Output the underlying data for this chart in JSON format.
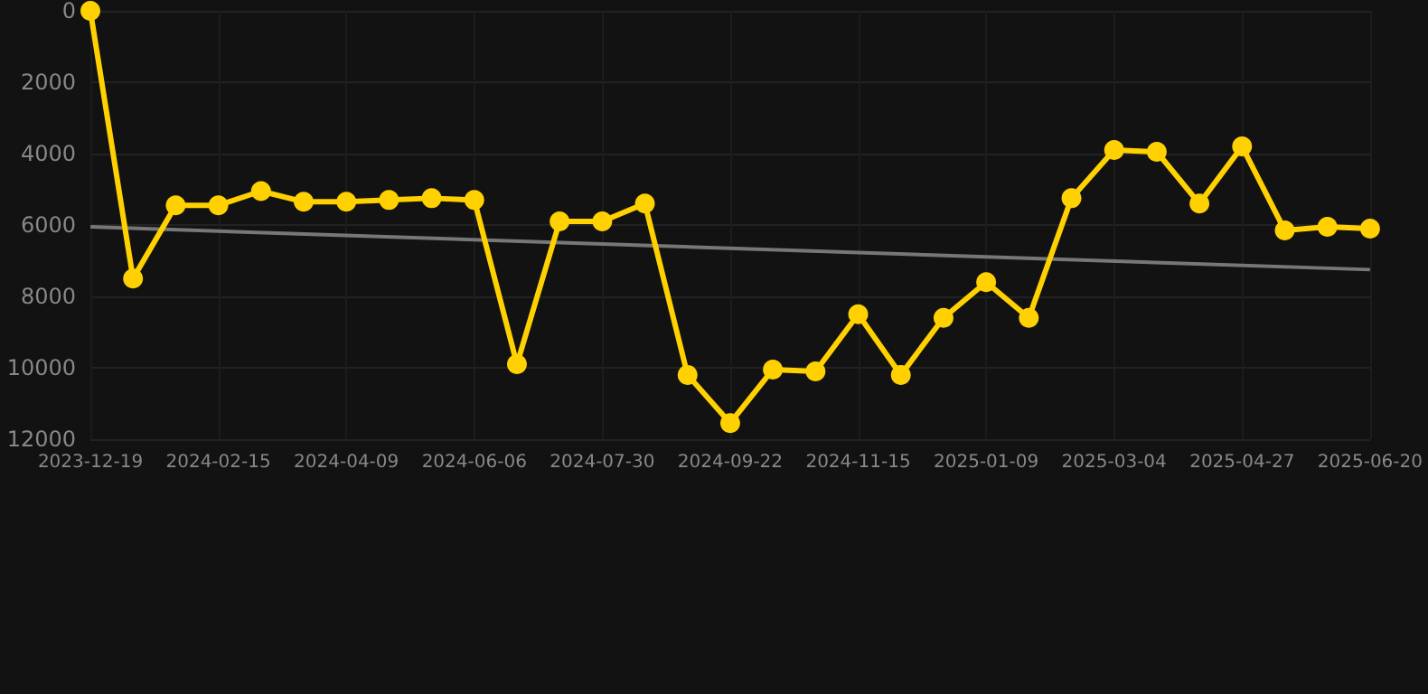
{
  "chart_data": {
    "type": "line",
    "categories": [
      "2023-12-19",
      null,
      null,
      "2024-02-15",
      null,
      null,
      "2024-04-09",
      null,
      null,
      "2024-06-06",
      null,
      null,
      "2024-07-30",
      null,
      null,
      "2024-09-22",
      null,
      null,
      "2024-11-15",
      null,
      null,
      "2025-01-09",
      null,
      null,
      "2025-03-04",
      null,
      null,
      "2025-04-27",
      null,
      null,
      "2025-06-20"
    ],
    "series": [
      {
        "color": "#ffd100",
        "marker": "circle",
        "values": [
          0,
          7500,
          5450,
          5450,
          5050,
          5350,
          5350,
          5300,
          5250,
          5300,
          9900,
          5900,
          5900,
          5400,
          10200,
          11550,
          10050,
          10100,
          8500,
          10200,
          8600,
          7600,
          8600,
          5250,
          3900,
          3950,
          5400,
          3800,
          6150,
          6050,
          6100
        ]
      },
      {
        "type": "line",
        "color": "#777777",
        "marker": "none",
        "values": [
          6050,
          null,
          null,
          null,
          null,
          null,
          null,
          null,
          null,
          null,
          null,
          null,
          null,
          null,
          null,
          null,
          null,
          null,
          null,
          null,
          null,
          null,
          null,
          null,
          null,
          null,
          null,
          null,
          null,
          null,
          7250
        ]
      }
    ],
    "ylim": [
      12000,
      0
    ],
    "yticks": [
      0,
      2000,
      4000,
      6000,
      8000,
      10000,
      12000
    ],
    "grid": true
  }
}
